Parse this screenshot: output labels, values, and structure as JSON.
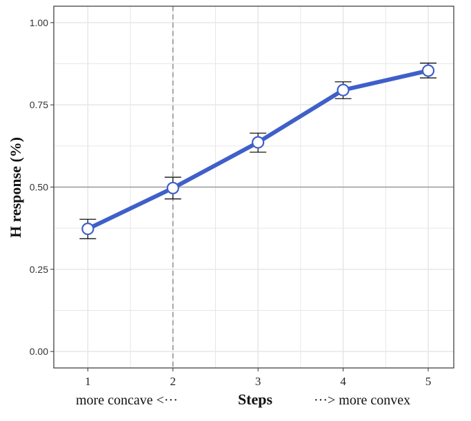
{
  "chart_data": {
    "type": "line",
    "title": "",
    "xlabel": "Steps",
    "ylabel": "H response (%)",
    "x_left_note": "more concave <···",
    "x_right_note": "···>  more convex",
    "x": [
      1,
      2,
      3,
      4,
      5
    ],
    "x_tick_labels": [
      "1",
      "2",
      "3",
      "4",
      "5"
    ],
    "y_tick_labels": [
      "0.00",
      "0.25",
      "0.50",
      "0.75",
      "1.00"
    ],
    "y_ticks": [
      0.0,
      0.25,
      0.5,
      0.75,
      1.0
    ],
    "ylim": [
      -0.05,
      1.05
    ],
    "xlim": [
      0.6,
      5.3
    ],
    "series": [
      {
        "values": [
          0.373,
          0.497,
          0.636,
          0.795,
          0.854
        ],
        "error_low": [
          0.343,
          0.464,
          0.606,
          0.769,
          0.832
        ],
        "error_high": [
          0.402,
          0.53,
          0.664,
          0.82,
          0.877
        ]
      }
    ],
    "reference_lines": {
      "horizontal_y": 0.5,
      "vertical_x": 2
    },
    "grid": true,
    "legend": "none",
    "colors": {
      "line": "#3f5fc9",
      "marker_fill": "#ffffff",
      "marker_edge": "#3f5fc9",
      "error_bar": "#111111",
      "grid": "#e6e6e6",
      "reference_h": "#8c8c8c",
      "reference_v": "#8c8c8c",
      "panel_border": "#333333"
    }
  }
}
